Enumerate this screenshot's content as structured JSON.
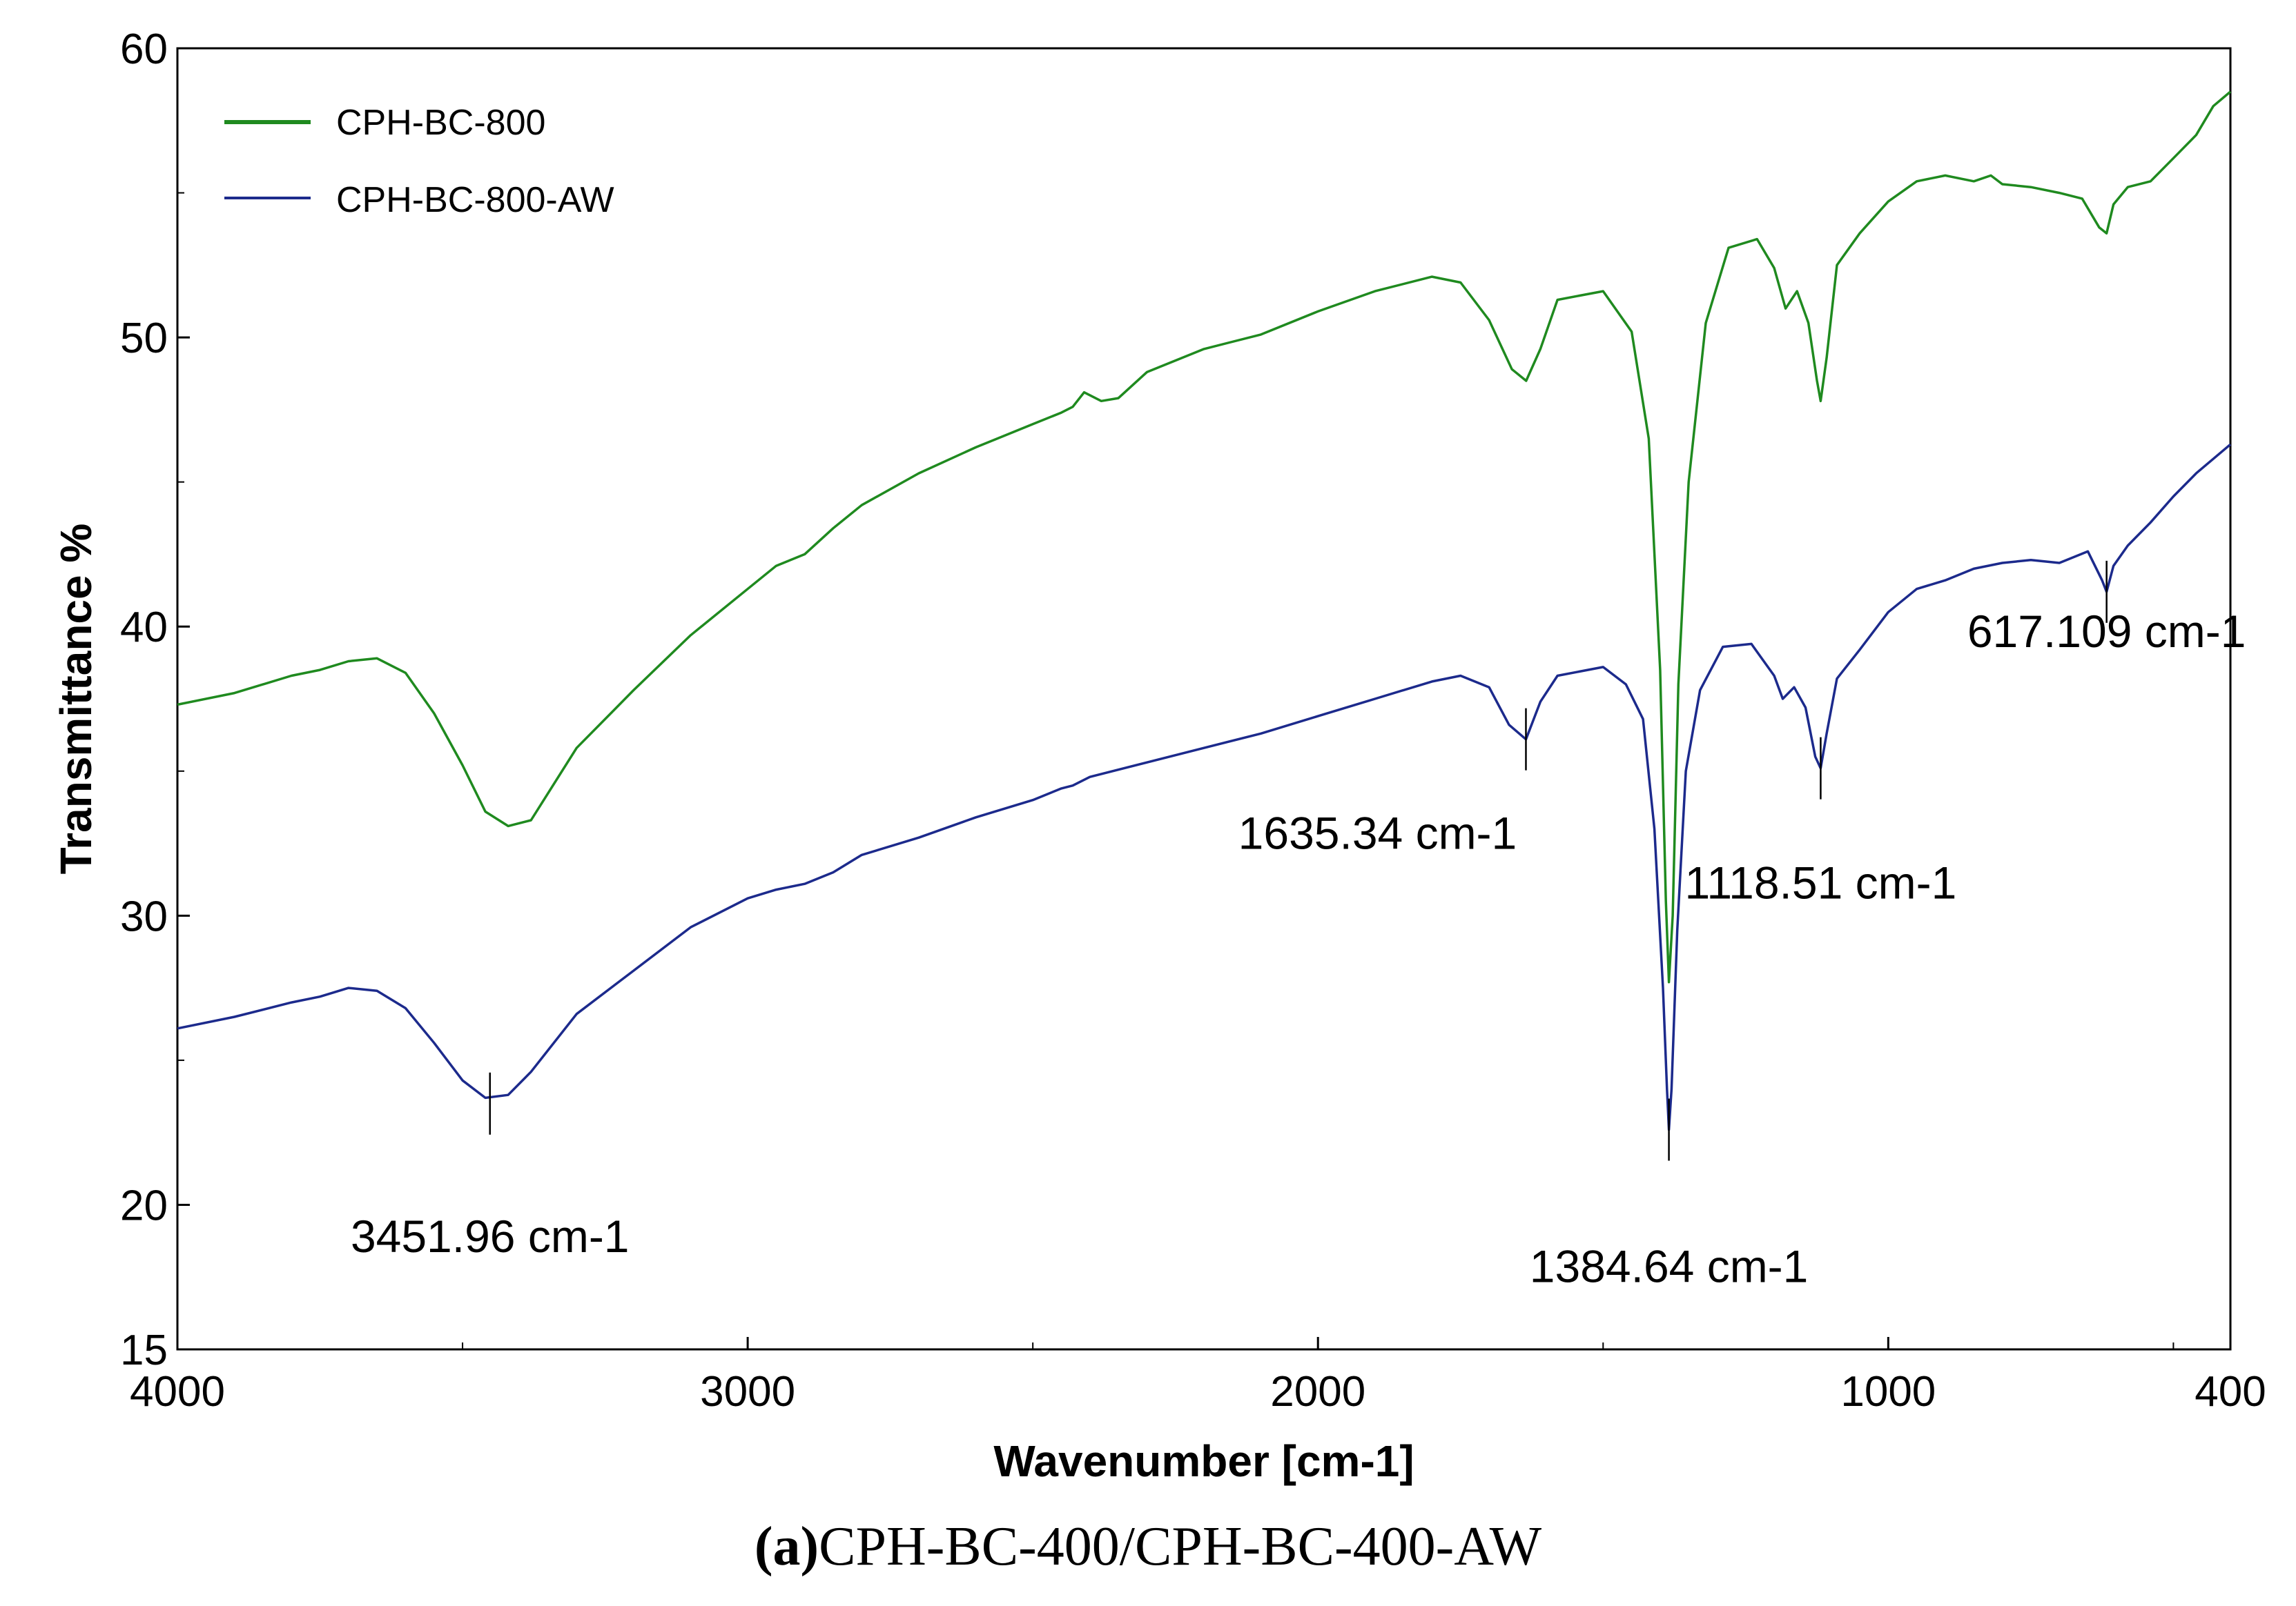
{
  "chart_data": {
    "type": "line",
    "xlabel": "Wavenumber [cm-1]",
    "ylabel": "Transmittance %",
    "xlim": [
      4000,
      400
    ],
    "ylim": [
      15,
      60
    ],
    "x_ticks": [
      4000,
      3000,
      2000,
      1000,
      400
    ],
    "y_ticks": [
      60,
      50,
      40,
      30,
      20,
      15
    ],
    "legend_position": "top-left",
    "caption_prefix": "(a)",
    "caption_text": "CPH-BC-400/CPH-BC-400-AW",
    "series": [
      {
        "name": "CPH-BC-800",
        "color": "#1f8a1f",
        "points": [
          [
            4000,
            37.3
          ],
          [
            3900,
            37.7
          ],
          [
            3800,
            38.3
          ],
          [
            3750,
            38.5
          ],
          [
            3700,
            38.8
          ],
          [
            3650,
            38.9
          ],
          [
            3600,
            38.4
          ],
          [
            3550,
            37.0
          ],
          [
            3500,
            35.2
          ],
          [
            3460,
            33.6
          ],
          [
            3420,
            33.1
          ],
          [
            3380,
            33.3
          ],
          [
            3300,
            35.8
          ],
          [
            3200,
            37.8
          ],
          [
            3100,
            39.7
          ],
          [
            3000,
            41.3
          ],
          [
            2950,
            42.1
          ],
          [
            2900,
            42.5
          ],
          [
            2850,
            43.4
          ],
          [
            2800,
            44.2
          ],
          [
            2700,
            45.3
          ],
          [
            2600,
            46.2
          ],
          [
            2500,
            47.0
          ],
          [
            2450,
            47.4
          ],
          [
            2430,
            47.6
          ],
          [
            2410,
            48.1
          ],
          [
            2380,
            47.8
          ],
          [
            2350,
            47.9
          ],
          [
            2300,
            48.8
          ],
          [
            2200,
            49.6
          ],
          [
            2100,
            50.1
          ],
          [
            2000,
            50.9
          ],
          [
            1900,
            51.6
          ],
          [
            1800,
            52.1
          ],
          [
            1750,
            51.9
          ],
          [
            1700,
            50.6
          ],
          [
            1660,
            48.9
          ],
          [
            1635,
            48.5
          ],
          [
            1610,
            49.6
          ],
          [
            1580,
            51.3
          ],
          [
            1500,
            51.6
          ],
          [
            1450,
            50.2
          ],
          [
            1420,
            46.5
          ],
          [
            1400,
            38.5
          ],
          [
            1390,
            30.5
          ],
          [
            1384.64,
            27.7
          ],
          [
            1378,
            30.0
          ],
          [
            1368,
            38.0
          ],
          [
            1350,
            45.0
          ],
          [
            1320,
            50.5
          ],
          [
            1280,
            53.1
          ],
          [
            1230,
            53.4
          ],
          [
            1200,
            52.4
          ],
          [
            1180,
            51.0
          ],
          [
            1160,
            51.6
          ],
          [
            1140,
            50.5
          ],
          [
            1125,
            48.5
          ],
          [
            1118.51,
            47.8
          ],
          [
            1108,
            49.3
          ],
          [
            1090,
            52.5
          ],
          [
            1050,
            53.6
          ],
          [
            1000,
            54.7
          ],
          [
            950,
            55.4
          ],
          [
            900,
            55.6
          ],
          [
            850,
            55.4
          ],
          [
            820,
            55.6
          ],
          [
            800,
            55.3
          ],
          [
            750,
            55.2
          ],
          [
            700,
            55.0
          ],
          [
            660,
            54.8
          ],
          [
            630,
            53.8
          ],
          [
            617.109,
            53.6
          ],
          [
            605,
            54.6
          ],
          [
            580,
            55.2
          ],
          [
            540,
            55.4
          ],
          [
            500,
            56.2
          ],
          [
            460,
            57.0
          ],
          [
            430,
            58.0
          ],
          [
            400,
            58.5
          ]
        ]
      },
      {
        "name": "CPH-BC-800-AW",
        "color": "#1c2a8c",
        "points": [
          [
            4000,
            26.1
          ],
          [
            3900,
            26.5
          ],
          [
            3800,
            27.0
          ],
          [
            3750,
            27.2
          ],
          [
            3700,
            27.5
          ],
          [
            3650,
            27.4
          ],
          [
            3600,
            26.8
          ],
          [
            3550,
            25.6
          ],
          [
            3500,
            24.3
          ],
          [
            3460,
            23.7
          ],
          [
            3420,
            23.8
          ],
          [
            3380,
            24.6
          ],
          [
            3300,
            26.6
          ],
          [
            3200,
            28.1
          ],
          [
            3100,
            29.6
          ],
          [
            3000,
            30.6
          ],
          [
            2950,
            30.9
          ],
          [
            2900,
            31.1
          ],
          [
            2850,
            31.5
          ],
          [
            2800,
            32.1
          ],
          [
            2700,
            32.7
          ],
          [
            2600,
            33.4
          ],
          [
            2500,
            34.0
          ],
          [
            2450,
            34.4
          ],
          [
            2430,
            34.5
          ],
          [
            2400,
            34.8
          ],
          [
            2300,
            35.3
          ],
          [
            2200,
            35.8
          ],
          [
            2100,
            36.3
          ],
          [
            2000,
            36.9
          ],
          [
            1900,
            37.5
          ],
          [
            1800,
            38.1
          ],
          [
            1750,
            38.3
          ],
          [
            1700,
            37.9
          ],
          [
            1665,
            36.6
          ],
          [
            1635.34,
            36.1
          ],
          [
            1610,
            37.4
          ],
          [
            1580,
            38.3
          ],
          [
            1500,
            38.6
          ],
          [
            1460,
            38.0
          ],
          [
            1430,
            36.8
          ],
          [
            1410,
            33.0
          ],
          [
            1395,
            27.5
          ],
          [
            1388,
            24.0
          ],
          [
            1384.64,
            22.6
          ],
          [
            1380,
            24.0
          ],
          [
            1370,
            29.5
          ],
          [
            1355,
            35.0
          ],
          [
            1330,
            37.8
          ],
          [
            1290,
            39.3
          ],
          [
            1240,
            39.4
          ],
          [
            1200,
            38.3
          ],
          [
            1185,
            37.5
          ],
          [
            1165,
            37.9
          ],
          [
            1145,
            37.2
          ],
          [
            1128,
            35.5
          ],
          [
            1118.51,
            35.1
          ],
          [
            1108,
            36.3
          ],
          [
            1090,
            38.2
          ],
          [
            1050,
            39.2
          ],
          [
            1000,
            40.5
          ],
          [
            950,
            41.3
          ],
          [
            900,
            41.6
          ],
          [
            850,
            42.0
          ],
          [
            800,
            42.2
          ],
          [
            750,
            42.3
          ],
          [
            700,
            42.2
          ],
          [
            650,
            42.6
          ],
          [
            625,
            41.6
          ],
          [
            617.109,
            41.2
          ],
          [
            605,
            42.1
          ],
          [
            580,
            42.8
          ],
          [
            540,
            43.6
          ],
          [
            500,
            44.5
          ],
          [
            460,
            45.3
          ],
          [
            400,
            46.3
          ]
        ]
      }
    ],
    "annotations": [
      {
        "label": "3451.96 cm-1",
        "x": 3451.96,
        "y": 23.5
      },
      {
        "label": "1635.34 cm-1",
        "x": 1635.34,
        "y": 36.1
      },
      {
        "label": "1118.51 cm-1",
        "x": 1118.51,
        "y": 35.1
      },
      {
        "label": "1384.64 cm-1",
        "x": 1384.64,
        "y": 22.6
      },
      {
        "label": "617.109 cm-1",
        "x": 617.109,
        "y": 41.2
      }
    ]
  }
}
